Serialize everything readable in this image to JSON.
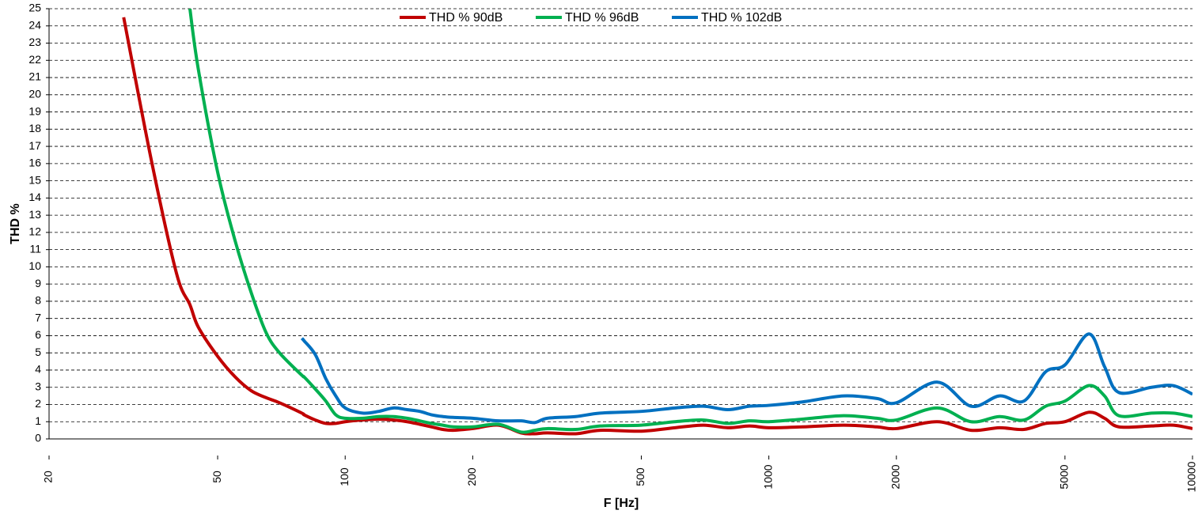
{
  "chart_data": {
    "type": "line",
    "xlabel": "F [Hz]",
    "ylabel": "THD %",
    "xscale": "log",
    "grid": true,
    "legend": "top",
    "x": [
      30,
      35,
      40,
      43,
      45,
      50,
      55,
      60,
      65,
      70,
      79,
      80,
      85,
      90,
      95,
      100,
      110,
      120,
      130,
      140,
      150,
      160,
      170,
      180,
      200,
      230,
      260,
      280,
      300,
      350,
      400,
      500,
      600,
      700,
      800,
      900,
      1000,
      1200,
      1500,
      1800,
      2000,
      2500,
      3000,
      3500,
      4000,
      4500,
      5000,
      5700,
      6200,
      6700,
      8000,
      9000,
      10000
    ],
    "series": [
      {
        "name": "THD % 90dB",
        "color": "#c00000",
        "values": [
          24.5,
          16,
          9.6,
          7.8,
          6.5,
          4.8,
          3.6,
          2.8,
          2.4,
          2.1,
          1.5,
          1.4,
          1.1,
          0.9,
          0.9,
          1.0,
          1.1,
          1.15,
          1.1,
          1.0,
          0.85,
          0.7,
          0.55,
          0.5,
          0.6,
          0.8,
          0.35,
          0.3,
          0.35,
          0.3,
          0.5,
          0.45,
          0.65,
          0.8,
          0.65,
          0.75,
          0.65,
          0.7,
          0.8,
          0.7,
          0.6,
          1.0,
          0.5,
          0.65,
          0.55,
          0.9,
          1.0,
          1.55,
          1.2,
          0.7,
          0.75,
          0.8,
          0.6
        ]
      },
      {
        "name": "THD % 96dB",
        "color": "#00b050",
        "values": [
          null,
          null,
          null,
          25,
          21.5,
          15.5,
          11.5,
          8.5,
          6.2,
          5.0,
          3.7,
          3.6,
          2.9,
          2.2,
          1.4,
          1.2,
          1.2,
          1.3,
          1.3,
          1.2,
          1.05,
          0.9,
          0.8,
          0.7,
          0.7,
          0.85,
          0.4,
          0.5,
          0.6,
          0.55,
          0.75,
          0.8,
          1.0,
          1.1,
          0.9,
          1.05,
          1.0,
          1.15,
          1.35,
          1.2,
          1.1,
          1.8,
          1.0,
          1.3,
          1.1,
          1.9,
          2.2,
          3.1,
          2.5,
          1.35,
          1.5,
          1.5,
          1.3
        ]
      },
      {
        "name": "THD % 102dB",
        "color": "#0070c0",
        "values": [
          null,
          null,
          null,
          null,
          null,
          null,
          null,
          null,
          null,
          null,
          5.85,
          5.7,
          4.9,
          3.5,
          2.5,
          1.8,
          1.5,
          1.6,
          1.8,
          1.7,
          1.6,
          1.4,
          1.3,
          1.25,
          1.2,
          1.05,
          1.05,
          0.95,
          1.2,
          1.3,
          1.5,
          1.6,
          1.8,
          1.9,
          1.7,
          1.9,
          1.95,
          2.15,
          2.5,
          2.35,
          2.1,
          3.3,
          1.9,
          2.5,
          2.2,
          3.9,
          4.3,
          6.1,
          4.2,
          2.7,
          3.0,
          3.1,
          2.6
        ]
      }
    ],
    "xlim": [
      20,
      10000
    ],
    "xticks": [
      20,
      50,
      100,
      200,
      500,
      1000,
      2000,
      5000,
      10000
    ],
    "ylim": [
      0,
      25
    ],
    "yticks": [
      0,
      1,
      2,
      3,
      4,
      5,
      6,
      7,
      8,
      9,
      10,
      11,
      12,
      13,
      14,
      15,
      16,
      17,
      18,
      19,
      20,
      21,
      22,
      23,
      24,
      25
    ]
  }
}
